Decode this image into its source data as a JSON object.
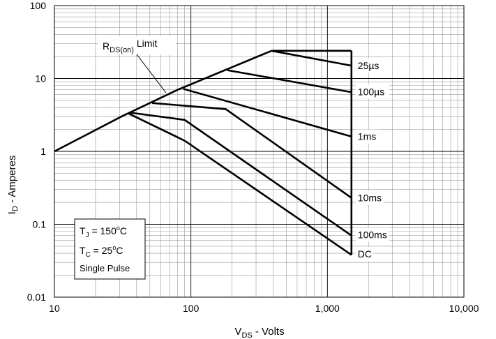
{
  "chart_data": {
    "type": "line",
    "x_scale": "log",
    "y_scale": "log",
    "xlim": [
      10,
      10000
    ],
    "ylim": [
      0.01,
      100
    ],
    "grid": true,
    "xlabel": {
      "main": "V",
      "sub": "DS",
      "rest": " - Volts"
    },
    "ylabel": {
      "main": "I",
      "sub": "D",
      "rest": " - Amperes"
    },
    "x_ticks": [
      {
        "value": 10,
        "label": "10"
      },
      {
        "value": 100,
        "label": "100"
      },
      {
        "value": 1000,
        "label": "1,000"
      },
      {
        "value": 10000,
        "label": "10,000"
      }
    ],
    "y_ticks": [
      {
        "value": 0.01,
        "label": "0.01"
      },
      {
        "value": 0.1,
        "label": "0.1"
      },
      {
        "value": 1,
        "label": "1"
      },
      {
        "value": 10,
        "label": "10"
      },
      {
        "value": 100,
        "label": "100"
      }
    ],
    "limit_annotation": {
      "main": "R",
      "sub": "DS(on)",
      "rest": " Limit"
    },
    "conditions": [
      {
        "main": "T",
        "sub": "J",
        "rest": " = 150",
        "deg": "o",
        "unit": "C"
      },
      {
        "main": "T",
        "sub": "C",
        "rest": " = 25",
        "deg": "o",
        "unit": "C"
      },
      {
        "text": "Single Pulse"
      }
    ],
    "rds_on_limit": {
      "points": [
        [
          10,
          1.0
        ],
        [
          31,
          3.0
        ],
        [
          80,
          7.0
        ],
        [
          390,
          24.0
        ]
      ]
    },
    "vdss_limit": {
      "points": [
        [
          1500,
          24.0
        ],
        [
          1500,
          0.038
        ]
      ]
    },
    "series": [
      {
        "name": "25µs",
        "points": [
          [
            390,
            24.0
          ],
          [
            1500,
            24.0
          ]
        ]
      },
      {
        "name": "",
        "points": [
          [
            390,
            24.0
          ],
          [
            1500,
            15.0
          ]
        ]
      },
      {
        "name": "100µs",
        "points": [
          [
            185,
            13.0
          ],
          [
            1500,
            6.5
          ]
        ]
      },
      {
        "name": "1ms",
        "points": [
          [
            88,
            7.2
          ],
          [
            1500,
            1.6
          ]
        ]
      },
      {
        "name": "10ms",
        "points": [
          [
            52,
            4.6
          ],
          [
            180,
            3.8
          ],
          [
            1500,
            0.23
          ]
        ]
      },
      {
        "name": "100ms",
        "points": [
          [
            36,
            3.4
          ],
          [
            90,
            2.7
          ],
          [
            1500,
            0.07
          ]
        ]
      },
      {
        "name": "DC",
        "points": [
          [
            35,
            3.3
          ],
          [
            90,
            1.4
          ],
          [
            1500,
            0.038
          ]
        ]
      }
    ],
    "series_label_anchor_y": {
      "25µs": 15.0,
      "100µs": 6.6,
      "1ms": 1.6,
      "10ms": 0.23,
      "100ms": 0.072,
      "DC": 0.039
    }
  }
}
